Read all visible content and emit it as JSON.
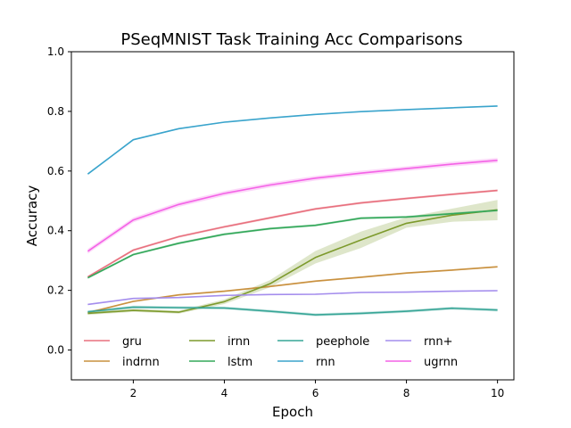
{
  "chart_data": {
    "type": "line",
    "title": "PSeqMNIST Task Training Acc  Comparisons",
    "xlabel": "Epoch",
    "ylabel": "Accuracy",
    "xlim": [
      0.64,
      10.36
    ],
    "ylim": [
      -0.1,
      1.0
    ],
    "xticks": [
      2,
      4,
      6,
      8,
      10
    ],
    "yticks": [
      0.0,
      0.2,
      0.4,
      0.6,
      0.8,
      1.0
    ],
    "xtick_labels": [
      "2",
      "4",
      "6",
      "8",
      "10"
    ],
    "ytick_labels": [
      "0.0",
      "0.2",
      "0.4",
      "0.6",
      "0.8",
      "1.0"
    ],
    "grid": false,
    "legend_position": "lower-center",
    "x": [
      1,
      2,
      3,
      4,
      5,
      6,
      7,
      8,
      9,
      10
    ],
    "series": [
      {
        "name": "gru",
        "color": "#e8707e",
        "values": [
          0.245,
          0.335,
          0.38,
          0.413,
          0.443,
          0.473,
          0.493,
          0.508,
          0.522,
          0.535
        ],
        "band": 0.004
      },
      {
        "name": "indrnn",
        "color": "#c9913f",
        "values": [
          0.125,
          0.163,
          0.185,
          0.197,
          0.213,
          0.231,
          0.244,
          0.258,
          0.268,
          0.279
        ],
        "band": 0.003
      },
      {
        "name": "irnn",
        "color": "#7d9a2c",
        "values": [
          0.123,
          0.133,
          0.127,
          0.162,
          0.222,
          0.31,
          0.369,
          0.425,
          0.452,
          0.47
        ],
        "band_upper": [
          0.005,
          0.005,
          0.005,
          0.008,
          0.012,
          0.022,
          0.028,
          0.02,
          0.022,
          0.033
        ],
        "band_lower": [
          0.005,
          0.005,
          0.005,
          0.008,
          0.012,
          0.02,
          0.027,
          0.015,
          0.022,
          0.035
        ]
      },
      {
        "name": "lstm",
        "color": "#33a85a",
        "values": [
          0.242,
          0.32,
          0.358,
          0.388,
          0.407,
          0.418,
          0.442,
          0.446,
          0.457,
          0.468
        ],
        "band": 0.004
      },
      {
        "name": "peephole",
        "color": "#36a596",
        "values": [
          0.128,
          0.144,
          0.142,
          0.141,
          0.13,
          0.118,
          0.123,
          0.13,
          0.14,
          0.134
        ],
        "band": 0.005
      },
      {
        "name": "rnn",
        "color": "#3aa4cc",
        "values": [
          0.59,
          0.705,
          0.742,
          0.764,
          0.778,
          0.79,
          0.799,
          0.806,
          0.812,
          0.818
        ],
        "band": 0.002
      },
      {
        "name": "rnn+",
        "color": "#a48ded",
        "values": [
          0.153,
          0.173,
          0.176,
          0.183,
          0.186,
          0.187,
          0.193,
          0.194,
          0.197,
          0.199
        ],
        "band": 0.002
      },
      {
        "name": "ugrnn",
        "color": "#f462e6",
        "values": [
          0.331,
          0.436,
          0.488,
          0.525,
          0.553,
          0.576,
          0.593,
          0.608,
          0.623,
          0.636
        ],
        "band": 0.008
      }
    ]
  }
}
